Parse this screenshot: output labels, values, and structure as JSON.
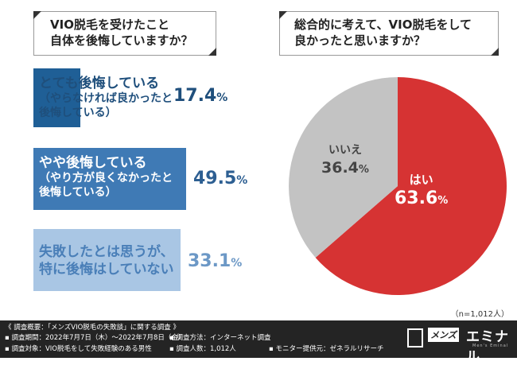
{
  "left_question": {
    "line1": "VIO脱毛を受けたこと",
    "line2": "自体を後悔していますか？"
  },
  "right_question": {
    "line1": "総合的に考えて、VIO脱毛をして",
    "line2": "良かったと思いますか？"
  },
  "colors": {
    "bar1": "#1f5f96",
    "bar2": "#3f7ab5",
    "bar3": "#a9c6e4",
    "pie_yes": "#d63333",
    "pie_no": "#c3c3c3"
  },
  "chart_data": [
    {
      "type": "bar",
      "title": "VIO脱毛を受けたこと自体を後悔していますか？",
      "categories": [
        "とても後悔している（やらなければ良かったと後悔している）",
        "やや後悔している（やり方が良くなかったと後悔している）",
        "失敗したとは思うが、特に後悔はしていない"
      ],
      "values": [
        17.4,
        49.5,
        33.1
      ],
      "unit": "%",
      "bars": [
        {
          "line1": "とても後悔している",
          "line2": "（やらなければ良かったと",
          "line3": "後悔している）",
          "whole": "17.",
          "frac": "4",
          "pct": "%"
        },
        {
          "line1": "やや後悔している",
          "line2": "（やり方が良くなかったと",
          "line3": "後悔している）",
          "whole": "49.",
          "frac": "5",
          "pct": "%"
        },
        {
          "line1": "失敗したとは思うが、",
          "line2": "特に後悔はしていない",
          "whole": "33.",
          "frac": "1",
          "pct": "%"
        }
      ]
    },
    {
      "type": "pie",
      "title": "総合的に考えて、VIO脱毛をして良かったと思いますか？",
      "categories": [
        "はい",
        "いいえ"
      ],
      "values": [
        63.6,
        36.4
      ],
      "unit": "%",
      "labels": [
        {
          "name": "はい",
          "whole": "63.",
          "frac": "6",
          "pct": "%"
        },
        {
          "name": "いいえ",
          "whole": "36.",
          "frac": "4",
          "pct": "%"
        }
      ]
    }
  ],
  "sample_size": "（n=1,012人）",
  "footer": {
    "overview": "《 調査概要：「メンズVIO脱毛の失敗談」に関する調査 》",
    "period": "▪ 調査期間：2022年7月7日（木）～2022年7月8日（金）",
    "target": "▪ 調査対象：VIO脱毛をして失敗経験のある男性",
    "method": "▪ 調査方法：インターネット調査",
    "count": "▪ 調査人数：1,012人",
    "provider": "▪ モニター提供元：ゼネラルリサーチ"
  },
  "logo": {
    "tag": "メンズ",
    "main": "エミナル",
    "sub": "Men's Eminal"
  }
}
